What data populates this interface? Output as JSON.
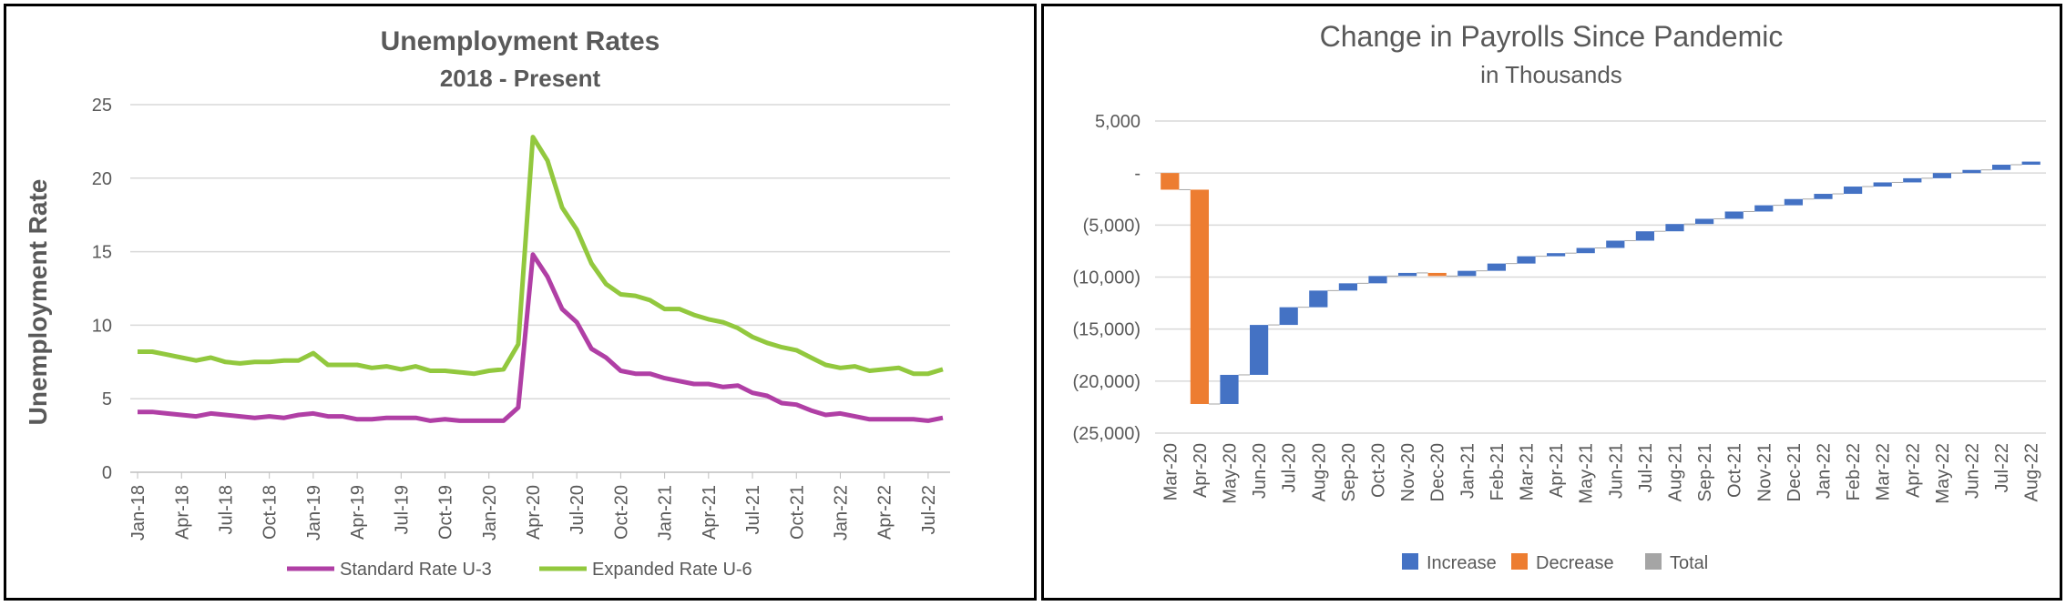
{
  "left_chart": {
    "title": "Unemployment Rates",
    "subtitle": "2018 - Present",
    "ylabel": "Unemployment Rate",
    "colors": {
      "u3": "#B03FA5",
      "u6": "#92C83E",
      "grid": "#D9D9D9",
      "axis": "#BFBFBF"
    }
  },
  "right_chart": {
    "title": "Change in Payrolls Since Pandemic",
    "subtitle": "in Thousands",
    "legend": [
      "Increase",
      "Decrease",
      "Total"
    ],
    "colors": {
      "increase": "#4472C4",
      "decrease": "#ED7D31",
      "total": "#A5A5A5",
      "grid": "#D9D9D9"
    }
  },
  "chart_data": [
    {
      "type": "line",
      "title": "Unemployment Rates",
      "subtitle": "2018 - Present",
      "xlabel": "",
      "ylabel": "Unemployment Rate",
      "ylim": [
        0,
        25
      ],
      "yticks": [
        0,
        5,
        10,
        15,
        20,
        25
      ],
      "grid": true,
      "legend_position": "bottom",
      "x": [
        "Jan-18",
        "Feb-18",
        "Mar-18",
        "Apr-18",
        "May-18",
        "Jun-18",
        "Jul-18",
        "Aug-18",
        "Sep-18",
        "Oct-18",
        "Nov-18",
        "Dec-18",
        "Jan-19",
        "Feb-19",
        "Mar-19",
        "Apr-19",
        "May-19",
        "Jun-19",
        "Jul-19",
        "Aug-19",
        "Sep-19",
        "Oct-19",
        "Nov-19",
        "Dec-19",
        "Jan-20",
        "Feb-20",
        "Mar-20",
        "Apr-20",
        "May-20",
        "Jun-20",
        "Jul-20",
        "Aug-20",
        "Sep-20",
        "Oct-20",
        "Nov-20",
        "Dec-20",
        "Jan-21",
        "Feb-21",
        "Mar-21",
        "Apr-21",
        "May-21",
        "Jun-21",
        "Jul-21",
        "Aug-21",
        "Sep-21",
        "Oct-21",
        "Nov-21",
        "Dec-21",
        "Jan-22",
        "Feb-22",
        "Mar-22",
        "Apr-22",
        "May-22",
        "Jun-22",
        "Jul-22",
        "Aug-22"
      ],
      "xtick_labels": [
        "Jan-18",
        "Apr-18",
        "Jul-18",
        "Oct-18",
        "Jan-19",
        "Apr-19",
        "Jul-19",
        "Oct-19",
        "Jan-20",
        "Apr-20",
        "Jul-20",
        "Oct-20",
        "Jan-21",
        "Apr-21",
        "Jul-21",
        "Oct-21",
        "Jan-22",
        "Apr-22",
        "Jul-22"
      ],
      "series": [
        {
          "name": "Standard Rate U-3",
          "values": [
            4.1,
            4.1,
            4.0,
            3.9,
            3.8,
            4.0,
            3.9,
            3.8,
            3.7,
            3.8,
            3.7,
            3.9,
            4.0,
            3.8,
            3.8,
            3.6,
            3.6,
            3.7,
            3.7,
            3.7,
            3.5,
            3.6,
            3.5,
            3.5,
            3.5,
            3.5,
            4.4,
            14.8,
            13.3,
            11.1,
            10.2,
            8.4,
            7.8,
            6.9,
            6.7,
            6.7,
            6.4,
            6.2,
            6.0,
            6.0,
            5.8,
            5.9,
            5.4,
            5.2,
            4.7,
            4.6,
            4.2,
            3.9,
            4.0,
            3.8,
            3.6,
            3.6,
            3.6,
            3.6,
            3.5,
            3.7
          ]
        },
        {
          "name": "Expanded Rate U-6",
          "values": [
            8.2,
            8.2,
            8.0,
            7.8,
            7.6,
            7.8,
            7.5,
            7.4,
            7.5,
            7.5,
            7.6,
            7.6,
            8.1,
            7.3,
            7.3,
            7.3,
            7.1,
            7.2,
            7.0,
            7.2,
            6.9,
            6.9,
            6.8,
            6.7,
            6.9,
            7.0,
            8.7,
            22.8,
            21.2,
            18.0,
            16.5,
            14.2,
            12.8,
            12.1,
            12.0,
            11.7,
            11.1,
            11.1,
            10.7,
            10.4,
            10.2,
            9.8,
            9.2,
            8.8,
            8.5,
            8.3,
            7.8,
            7.3,
            7.1,
            7.2,
            6.9,
            7.0,
            7.1,
            6.7,
            6.7,
            7.0
          ]
        }
      ]
    },
    {
      "type": "bar",
      "subtype": "waterfall",
      "title": "Change in Payrolls Since Pandemic",
      "subtitle": "in Thousands",
      "ylim": [
        -25000,
        5000
      ],
      "yticks": [
        5000,
        0,
        -5000,
        -10000,
        -15000,
        -20000,
        -25000
      ],
      "ytick_labels": [
        "5,000",
        "-",
        "(5,000)",
        "(10,000)",
        "(15,000)",
        "(20,000)",
        "(25,000)"
      ],
      "grid": true,
      "legend_position": "bottom",
      "categories": [
        "Mar-20",
        "Apr-20",
        "May-20",
        "Jun-20",
        "Jul-20",
        "Aug-20",
        "Sep-20",
        "Oct-20",
        "Nov-20",
        "Dec-20",
        "Jan-21",
        "Feb-21",
        "Mar-21",
        "Apr-21",
        "May-21",
        "Jun-21",
        "Jul-21",
        "Aug-21",
        "Sep-21",
        "Oct-21",
        "Nov-21",
        "Dec-21",
        "Jan-22",
        "Feb-22",
        "Mar-22",
        "Apr-22",
        "May-22",
        "Jun-22",
        "Jul-22",
        "Aug-22"
      ],
      "values": [
        -1600,
        -20600,
        2800,
        4800,
        1700,
        1600,
        700,
        700,
        300,
        -300,
        500,
        700,
        700,
        300,
        500,
        700,
        900,
        700,
        500,
        700,
        600,
        600,
        500,
        700,
        400,
        400,
        500,
        300,
        500,
        300
      ],
      "series": [
        {
          "name": "Increase"
        },
        {
          "name": "Decrease"
        },
        {
          "name": "Total"
        }
      ]
    }
  ]
}
